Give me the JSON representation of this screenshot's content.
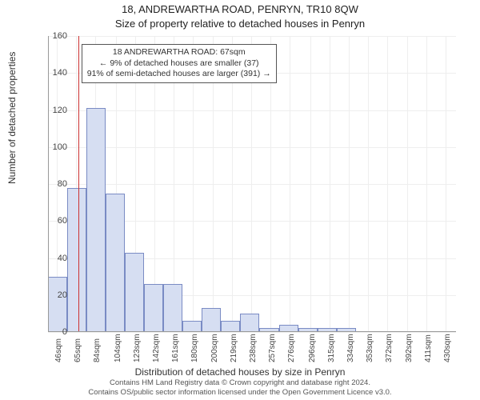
{
  "title_line1": "18, ANDREWARTHA ROAD, PENRYN, TR10 8QW",
  "title_line2": "Size of property relative to detached houses in Penryn",
  "ylabel": "Number of detached properties",
  "xlabel": "Distribution of detached houses by size in Penryn",
  "annotation": {
    "line1": "18 ANDREWARTHA ROAD: 67sqm",
    "line2": "← 9% of detached houses are smaller (37)",
    "line3": "91% of semi-detached houses are larger (391) →"
  },
  "footnote_line1": "Contains HM Land Registry data © Crown copyright and database right 2024.",
  "footnote_line2": "Contains OS/public sector information licensed under the Open Government Licence v3.0.",
  "chart": {
    "type": "histogram",
    "x_min": 37,
    "x_max": 440,
    "y_min": 0,
    "y_max": 160,
    "y_tick_step": 20,
    "x_ticks": [
      46,
      65,
      84,
      104,
      123,
      142,
      161,
      180,
      200,
      219,
      238,
      257,
      276,
      296,
      315,
      334,
      353,
      372,
      392,
      411,
      430
    ],
    "x_tick_suffix": "sqm",
    "background_color": "#ffffff",
    "grid_color": "#eeeeee",
    "axis_color": "#999999",
    "bar_fill": "#d6def2",
    "bar_stroke": "#7a8bc4",
    "reference_line_x": 67,
    "reference_line_color": "#cc3333",
    "bars": [
      {
        "x_start": 37,
        "x_end": 56,
        "value": 30
      },
      {
        "x_start": 56,
        "x_end": 75,
        "value": 78
      },
      {
        "x_start": 75,
        "x_end": 94,
        "value": 121
      },
      {
        "x_start": 94,
        "x_end": 113,
        "value": 75
      },
      {
        "x_start": 113,
        "x_end": 132,
        "value": 43
      },
      {
        "x_start": 132,
        "x_end": 151,
        "value": 26
      },
      {
        "x_start": 151,
        "x_end": 170,
        "value": 26
      },
      {
        "x_start": 170,
        "x_end": 189,
        "value": 6
      },
      {
        "x_start": 189,
        "x_end": 208,
        "value": 13
      },
      {
        "x_start": 208,
        "x_end": 227,
        "value": 6
      },
      {
        "x_start": 227,
        "x_end": 246,
        "value": 10
      },
      {
        "x_start": 246,
        "x_end": 265,
        "value": 2
      },
      {
        "x_start": 265,
        "x_end": 284,
        "value": 4
      },
      {
        "x_start": 284,
        "x_end": 303,
        "value": 2
      },
      {
        "x_start": 303,
        "x_end": 322,
        "value": 2
      },
      {
        "x_start": 322,
        "x_end": 341,
        "value": 2
      }
    ],
    "label_fontsize": 12,
    "tick_fontsize": 11,
    "title_fontsize": 13
  }
}
